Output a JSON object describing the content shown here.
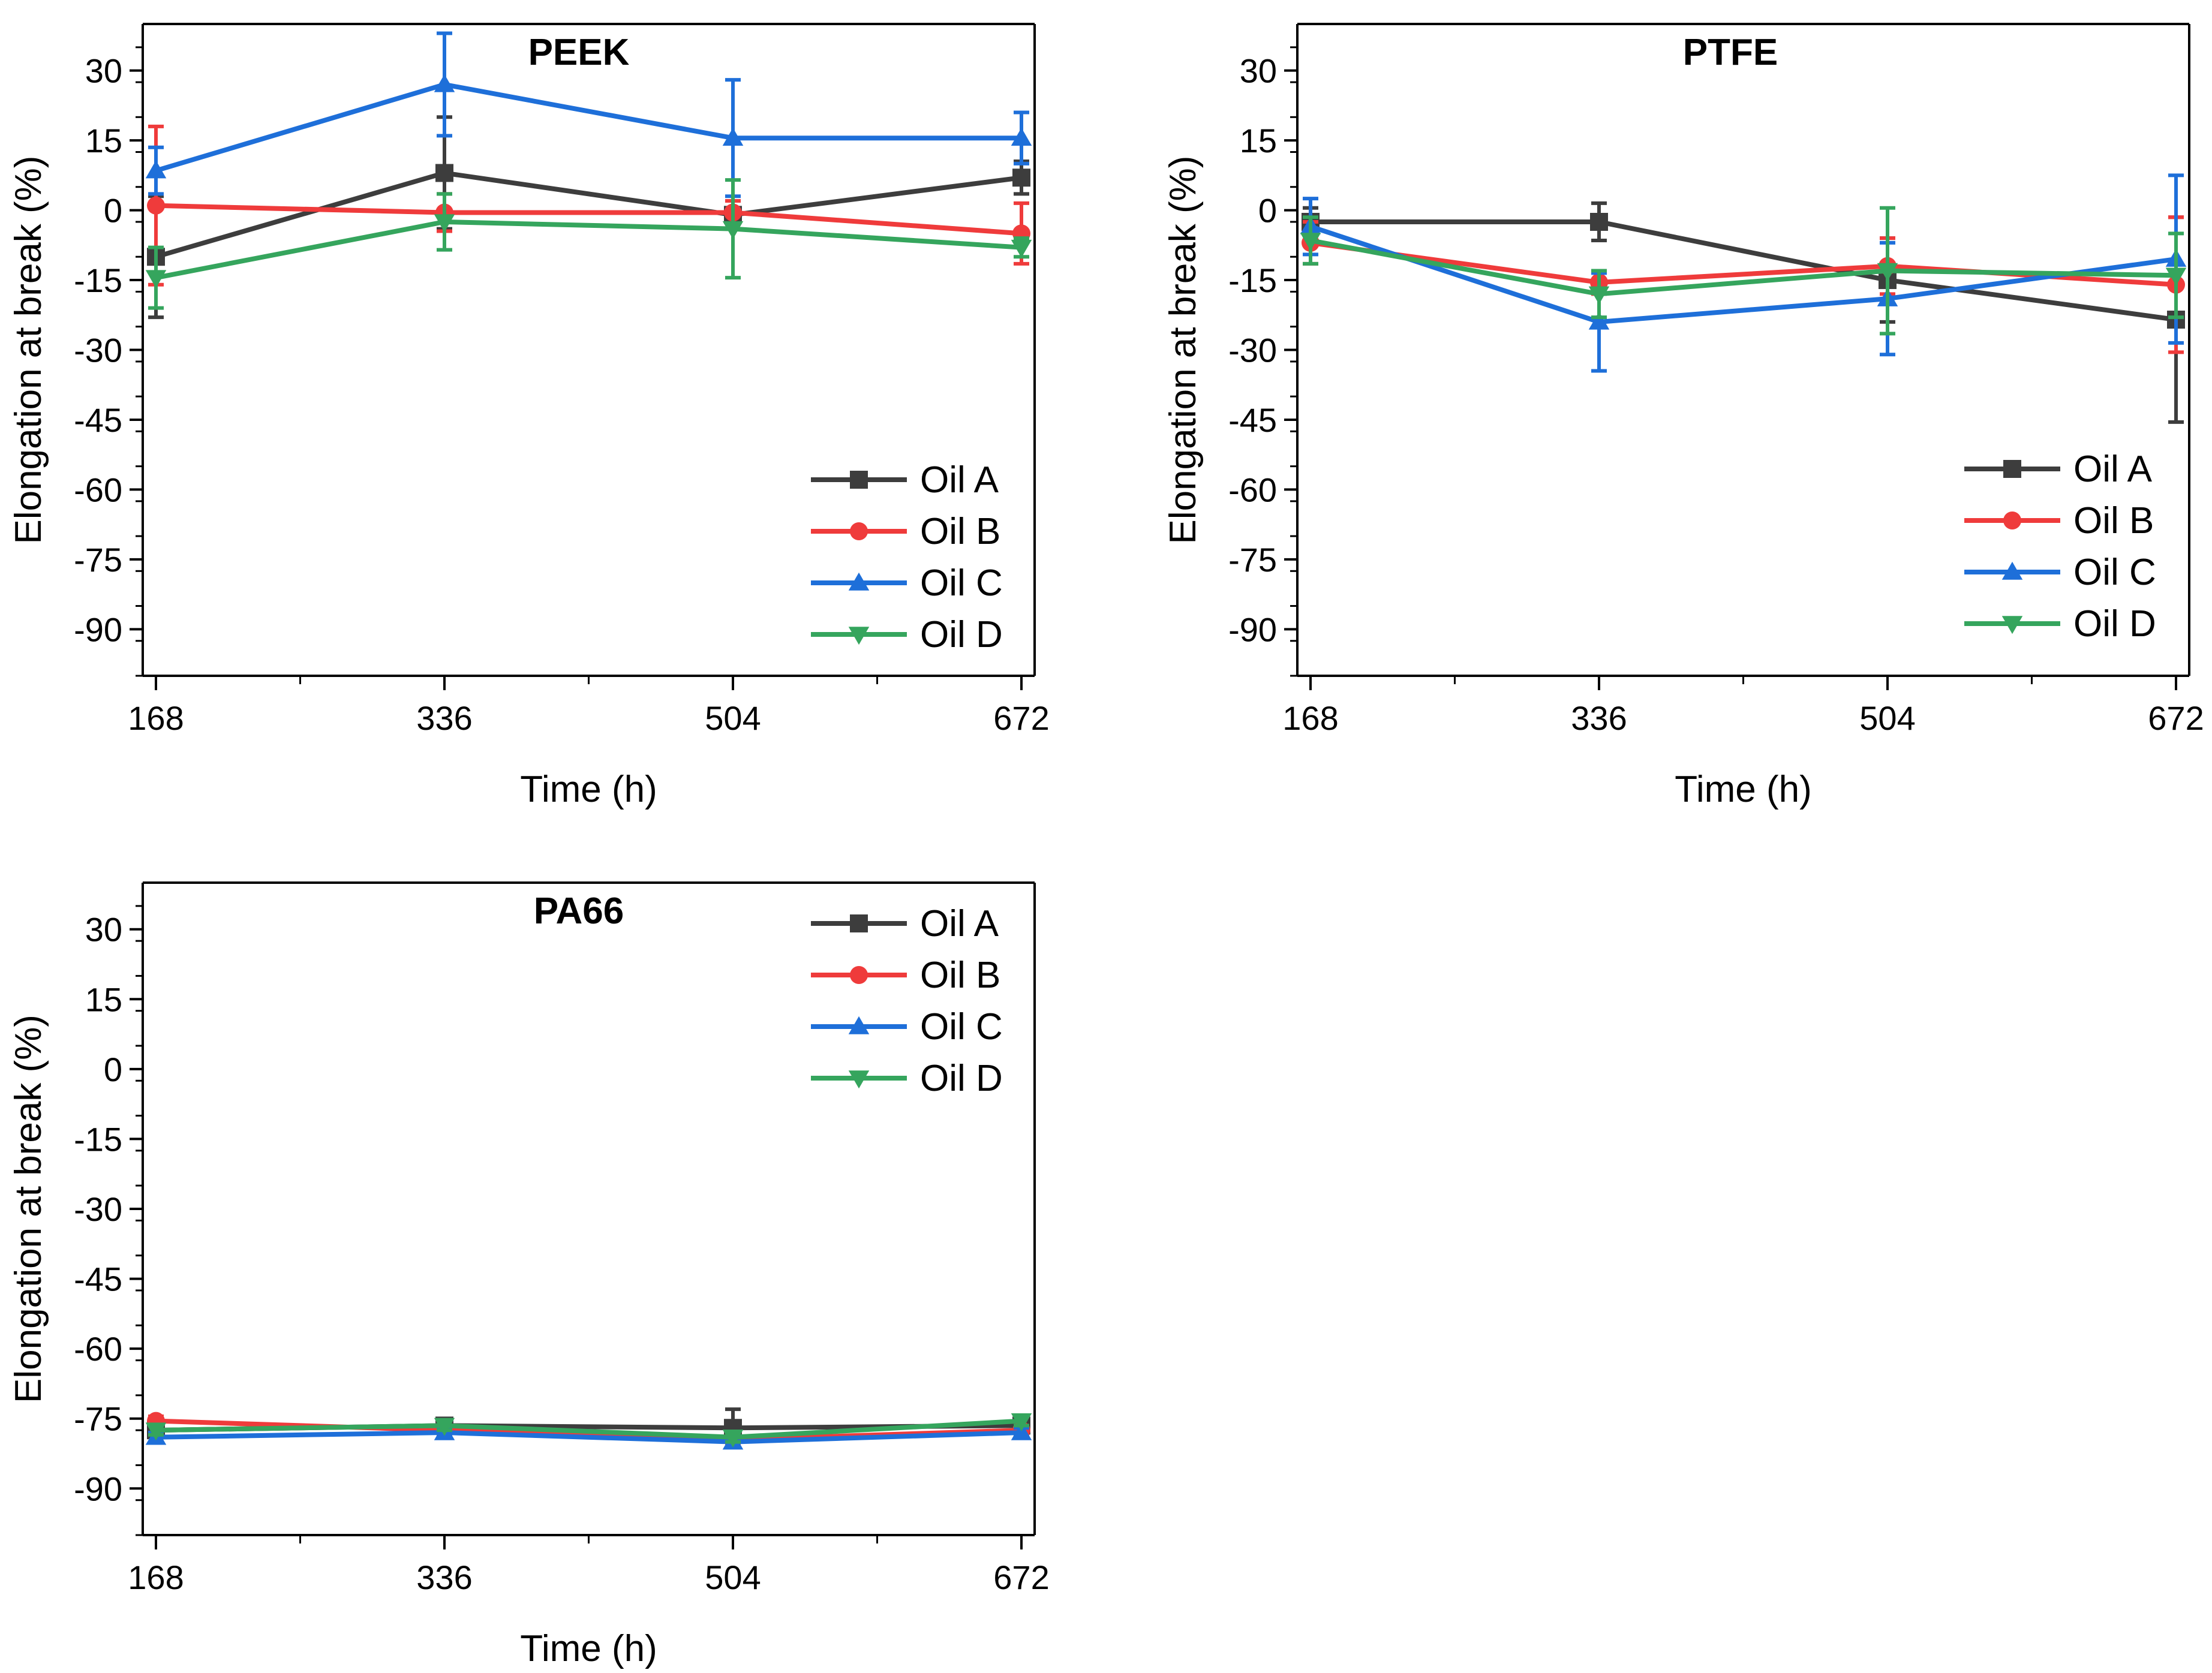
{
  "colors": {
    "Oil A": "#3d3d3d",
    "Oil B": "#ef3b3b",
    "Oil C": "#1e6fd9",
    "Oil D": "#35a55d",
    "axis": "#000000"
  },
  "chart_data": [
    {
      "type": "line",
      "title": "PEEK",
      "xlabel": "Time (h)",
      "ylabel": "Elongation at break (%)",
      "x": [
        168,
        336,
        504,
        672
      ],
      "xlim": [
        168,
        672
      ],
      "ylim": [
        -100,
        40
      ],
      "yticks": [
        30,
        15,
        0,
        -15,
        -30,
        -45,
        -60,
        -75,
        -90
      ],
      "legend": "lower-right",
      "series": [
        {
          "name": "Oil A",
          "marker": "square",
          "values": [
            -10,
            8,
            -1,
            7
          ],
          "errors": [
            13,
            12,
            3,
            3.5
          ]
        },
        {
          "name": "Oil B",
          "marker": "circle",
          "values": [
            1,
            -0.5,
            -0.5,
            -5
          ],
          "errors": [
            17,
            4,
            2.5,
            6.5
          ]
        },
        {
          "name": "Oil C",
          "marker": "triangle-up",
          "values": [
            8.5,
            27,
            15.5,
            15.5
          ],
          "errors": [
            5,
            11,
            12.5,
            5.5
          ]
        },
        {
          "name": "Oil D",
          "marker": "triangle-down",
          "values": [
            -14.5,
            -2.5,
            -4,
            -8
          ],
          "errors": [
            6.5,
            6,
            10.5,
            2
          ]
        }
      ]
    },
    {
      "type": "line",
      "title": "PTFE",
      "xlabel": "Time (h)",
      "ylabel": "Elongation at break (%)",
      "x": [
        168,
        336,
        504,
        672
      ],
      "xlim": [
        168,
        672
      ],
      "ylim": [
        -100,
        40
      ],
      "yticks": [
        30,
        15,
        0,
        -15,
        -30,
        -45,
        -60,
        -75,
        -90
      ],
      "legend": "center-right",
      "series": [
        {
          "name": "Oil A",
          "marker": "square",
          "values": [
            -2.5,
            -2.5,
            -15,
            -23.5
          ],
          "errors": [
            3,
            4,
            9,
            22
          ]
        },
        {
          "name": "Oil B",
          "marker": "circle",
          "values": [
            -7,
            -15.5,
            -12,
            -16
          ],
          "errors": [
            4.5,
            2.5,
            6,
            14.5
          ]
        },
        {
          "name": "Oil C",
          "marker": "triangle-up",
          "values": [
            -3.5,
            -24,
            -19,
            -10.5
          ],
          "errors": [
            6,
            10.5,
            12,
            18
          ]
        },
        {
          "name": "Oil D",
          "marker": "triangle-down",
          "values": [
            -6.5,
            -18,
            -13,
            -14
          ],
          "errors": [
            5,
            5,
            13.5,
            9
          ]
        }
      ]
    },
    {
      "type": "line",
      "title": "PA66",
      "xlabel": "Time (h)",
      "ylabel": "Elongation at break (%)",
      "x": [
        168,
        336,
        504,
        672
      ],
      "xlim": [
        168,
        672
      ],
      "ylim": [
        -100,
        40
      ],
      "yticks": [
        30,
        15,
        0,
        -15,
        -30,
        -45,
        -60,
        -75,
        -90
      ],
      "legend": "top-right",
      "series": [
        {
          "name": "Oil A",
          "marker": "square",
          "values": [
            -77.5,
            -76.5,
            -77,
            -76.5
          ],
          "errors": [
            1,
            1,
            4,
            1
          ]
        },
        {
          "name": "Oil B",
          "marker": "circle",
          "values": [
            -75.5,
            -77.5,
            -79.5,
            -77.5
          ],
          "errors": [
            1,
            1,
            1,
            1
          ]
        },
        {
          "name": "Oil C",
          "marker": "triangle-up",
          "values": [
            -79,
            -78,
            -80,
            -78
          ],
          "errors": [
            1,
            1,
            1,
            1
          ]
        },
        {
          "name": "Oil D",
          "marker": "triangle-down",
          "values": [
            -77.5,
            -76.5,
            -79,
            -75.5
          ],
          "errors": [
            1,
            1,
            1,
            1
          ]
        }
      ]
    }
  ]
}
